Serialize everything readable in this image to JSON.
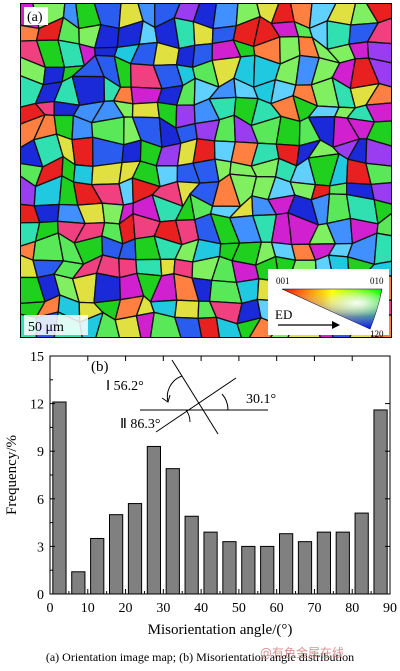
{
  "panel_a": {
    "label": "(a)",
    "scale_bar": "50 μm",
    "legend": {
      "corner_001": "001",
      "corner_010": "010",
      "corner_120": "120",
      "direction": "ED"
    }
  },
  "panel_b": {
    "label": "(b)"
  },
  "inset": {
    "angle_1": "Ⅰ 56.2°",
    "angle_2": "Ⅱ 86.3°",
    "angle_3": "30.1°"
  },
  "caption": "(a)  Orientation image map; (b) Misorientation angle distribution",
  "watermark": "@有色金属在线",
  "colors": {
    "bar_fill": "#808080",
    "bar_stroke": "#000000",
    "axis": "#000000"
  },
  "chart_data": {
    "type": "bar",
    "xlabel": "Misorientation angle/(°)",
    "ylabel": "Frequency/%",
    "xlim": [
      0,
      90
    ],
    "ylim": [
      0,
      15
    ],
    "xticks": [
      0,
      10,
      20,
      30,
      40,
      50,
      60,
      70,
      80,
      90
    ],
    "yticks": [
      0,
      3,
      6,
      9,
      12,
      15
    ],
    "x": [
      2.5,
      7.5,
      12.5,
      17.5,
      22.5,
      27.5,
      32.5,
      37.5,
      42.5,
      47.5,
      52.5,
      57.5,
      62.5,
      67.5,
      72.5,
      77.5,
      82.5,
      87.5
    ],
    "values": [
      12.1,
      1.4,
      3.5,
      5.0,
      5.7,
      9.3,
      7.9,
      4.9,
      3.9,
      3.3,
      3.0,
      3.0,
      3.8,
      3.3,
      3.9,
      3.9,
      5.1,
      11.6
    ]
  }
}
